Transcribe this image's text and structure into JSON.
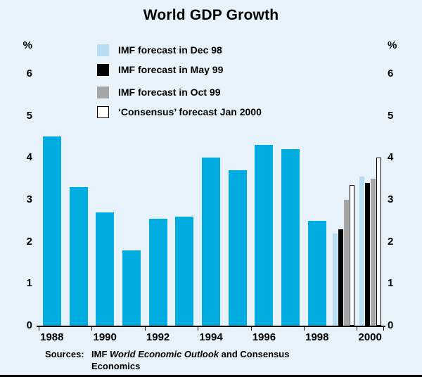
{
  "title": "World GDP Growth",
  "axes": {
    "unit_left": "%",
    "unit_right": "%",
    "y_ticks": [
      0,
      1,
      2,
      3,
      4,
      5,
      6
    ],
    "x_tick_labels": [
      "1988",
      "1990",
      "1992",
      "1994",
      "1996",
      "1998",
      "2000"
    ]
  },
  "source": {
    "label": "Sources:",
    "pre": "IMF ",
    "italic": "World Economic Outlook",
    "post": " and Consensus",
    "line2": "Economics"
  },
  "chart_data": {
    "type": "bar",
    "title": "World GDP Growth",
    "xlabel": "",
    "ylabel": "%",
    "ylim": [
      0,
      6.6
    ],
    "grid": false,
    "bar_color": "#00ace0",
    "background_color": "#e7f2fa",
    "categories": [
      1988,
      1989,
      1990,
      1991,
      1992,
      1993,
      1994,
      1995,
      1996,
      1997,
      1998
    ],
    "values": [
      4.5,
      3.3,
      2.7,
      1.8,
      2.55,
      2.6,
      4.0,
      3.7,
      4.3,
      4.2,
      2.5
    ],
    "forecasts": {
      "categories": [
        1999,
        2000
      ],
      "series": [
        {
          "name": "IMF forecast in Dec 98",
          "color": "#b8dcf2",
          "values": [
            2.2,
            3.55
          ]
        },
        {
          "name": "IMF forecast in May 99",
          "color": "#000000",
          "values": [
            2.3,
            3.4
          ]
        },
        {
          "name": "IMF forecast in Oct 99",
          "color": "#a6a6a6",
          "values": [
            3.0,
            3.5
          ]
        },
        {
          "name": "‘Consensus’ forecast Jan 2000",
          "color": "#ffffff",
          "border": "#000000",
          "values": [
            3.35,
            4.0
          ]
        }
      ],
      "legend_position": "top-left-inside"
    }
  }
}
